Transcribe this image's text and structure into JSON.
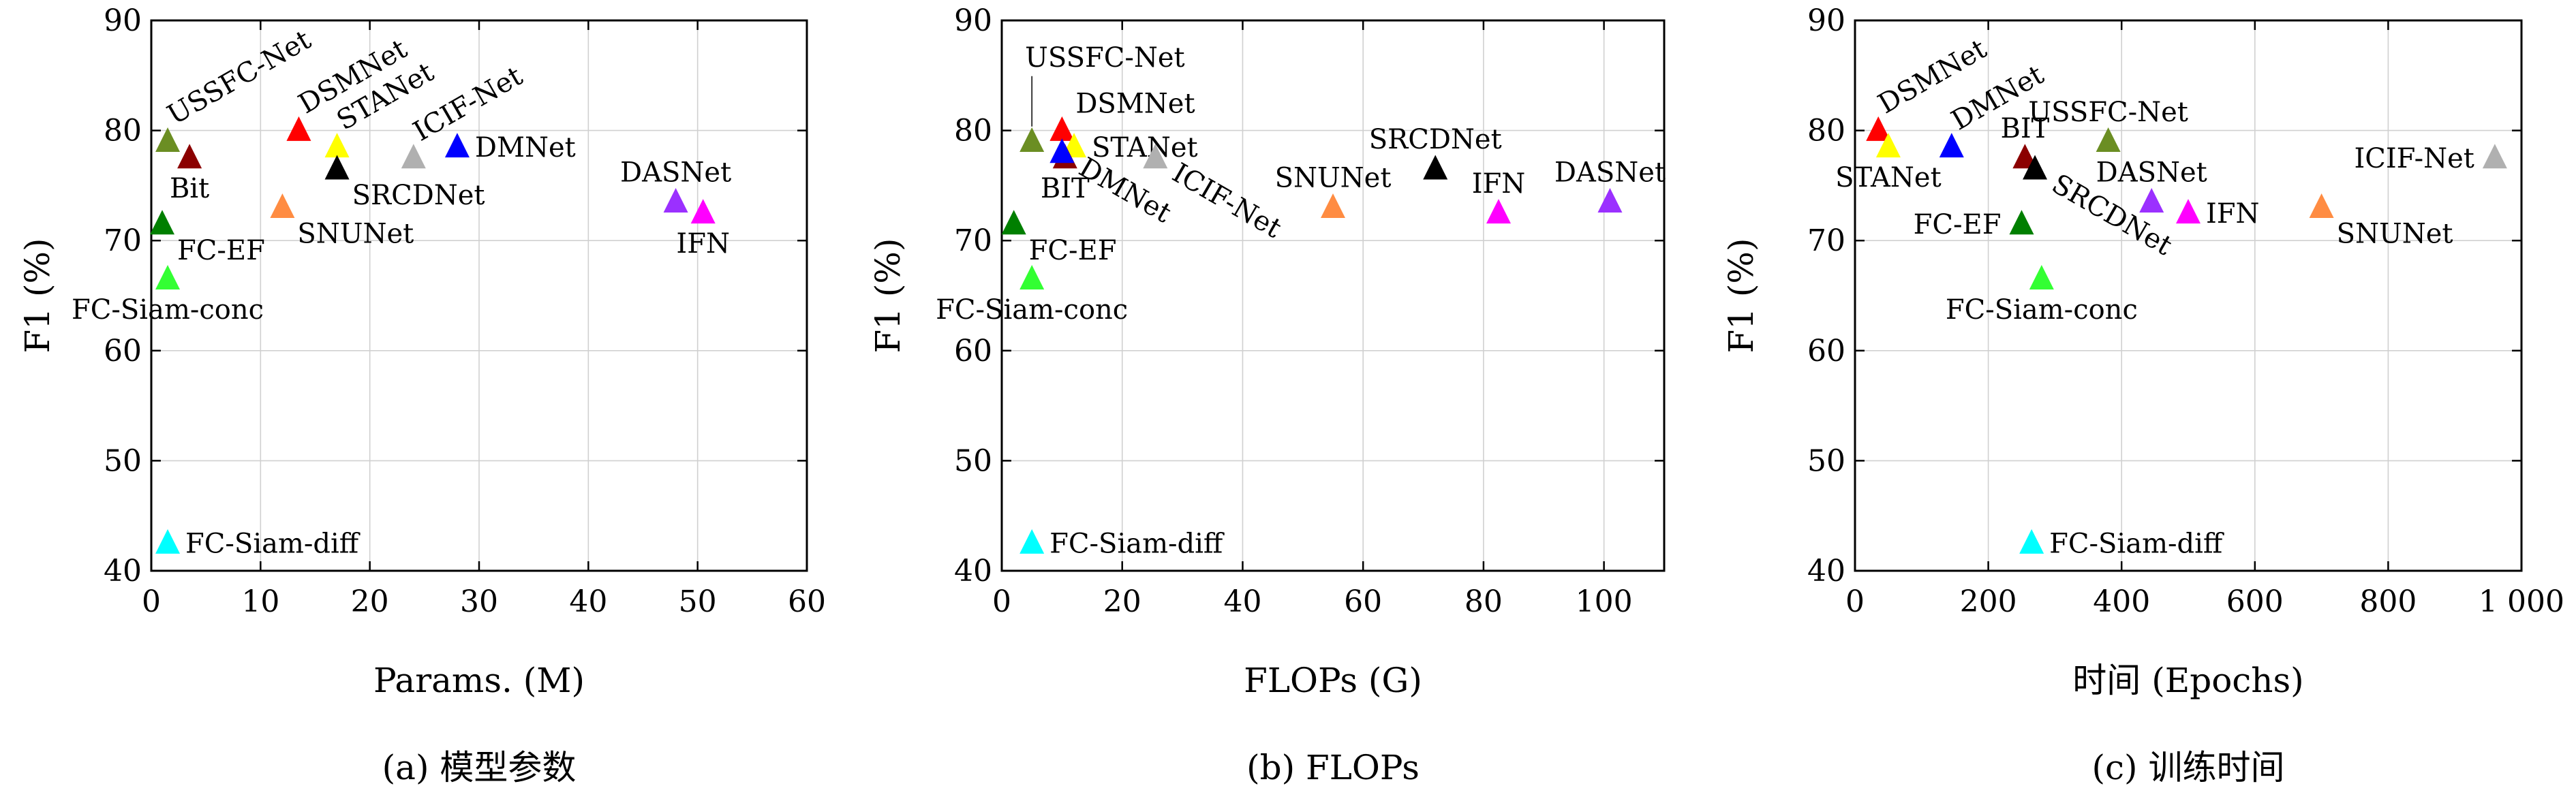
{
  "chart_data": [
    {
      "type": "scatter",
      "caption": "(a) 模型参数",
      "xlabel": "Params. (M)",
      "ylabel": "F1 (%)",
      "xlim": [
        0,
        60
      ],
      "ylim": [
        40,
        90
      ],
      "xticks": [
        0,
        10,
        20,
        30,
        40,
        50,
        60
      ],
      "yticks": [
        40,
        50,
        60,
        70,
        80,
        90
      ],
      "grid": true,
      "points": [
        {
          "name": "USSFC-Net",
          "x": 1.5,
          "y": 79.0,
          "color": "#6b8e23",
          "label_pos": "upper-right-rotated"
        },
        {
          "name": "Bit",
          "x": 3.5,
          "y": 77.5,
          "color": "#8b0000",
          "label_pos": "below"
        },
        {
          "name": "DSMNet",
          "x": 13.5,
          "y": 80.0,
          "color": "#ff0000",
          "label_pos": "upper-right-rotated"
        },
        {
          "name": "STANet",
          "x": 17.0,
          "y": 78.5,
          "color": "#ffff00",
          "label_pos": "upper-right-rotated"
        },
        {
          "name": "SRCDNet",
          "x": 17.0,
          "y": 76.5,
          "color": "#000000",
          "label_pos": "lower-right"
        },
        {
          "name": "ICIF-Net",
          "x": 24.0,
          "y": 77.5,
          "color": "#b0b0b0",
          "label_pos": "upper-right-rotated"
        },
        {
          "name": "DMNet",
          "x": 28.0,
          "y": 78.5,
          "color": "#0000ff",
          "label_pos": "right"
        },
        {
          "name": "SNUNet",
          "x": 12.0,
          "y": 73.0,
          "color": "#ff8c42",
          "label_pos": "lower-right"
        },
        {
          "name": "FC-EF",
          "x": 1.0,
          "y": 71.5,
          "color": "#007f00",
          "label_pos": "lower-right"
        },
        {
          "name": "FC-Siam-conc",
          "x": 1.5,
          "y": 66.5,
          "color": "#33ff33",
          "label_pos": "below"
        },
        {
          "name": "DASNet",
          "x": 48.0,
          "y": 73.5,
          "color": "#9b30ff",
          "label_pos": "above"
        },
        {
          "name": "IFN",
          "x": 50.5,
          "y": 72.5,
          "color": "#ff00ff",
          "label_pos": "below"
        },
        {
          "name": "FC-Siam-diff",
          "x": 1.5,
          "y": 42.5,
          "color": "#00ffff",
          "label_pos": "right"
        }
      ]
    },
    {
      "type": "scatter",
      "caption": "(b) FLOPs",
      "xlabel": "FLOPs (G)",
      "ylabel": "F1 (%)",
      "xlim": [
        0,
        110
      ],
      "ylim": [
        40,
        90
      ],
      "xticks": [
        0,
        20,
        40,
        60,
        80,
        100
      ],
      "yticks": [
        40,
        50,
        60,
        70,
        80,
        90
      ],
      "grid": true,
      "points": [
        {
          "name": "USSFC-Net",
          "x": 5.0,
          "y": 79.0,
          "color": "#6b8e23",
          "label_pos": "above-leader"
        },
        {
          "name": "DSMNet",
          "x": 10.0,
          "y": 80.0,
          "color": "#ff0000",
          "label_pos": "upper-right"
        },
        {
          "name": "STANet",
          "x": 12.0,
          "y": 78.5,
          "color": "#ffff00",
          "label_pos": "right"
        },
        {
          "name": "BIT",
          "x": 10.5,
          "y": 77.5,
          "color": "#8b0000",
          "label_pos": "below"
        },
        {
          "name": "DMNet",
          "x": 10.0,
          "y": 78.0,
          "color": "#0000ff",
          "label_pos": "lower-right-rotated"
        },
        {
          "name": "ICIF-Net",
          "x": 25.5,
          "y": 77.5,
          "color": "#b0b0b0",
          "label_pos": "lower-right-rotated"
        },
        {
          "name": "FC-EF",
          "x": 2.0,
          "y": 71.5,
          "color": "#007f00",
          "label_pos": "lower-right"
        },
        {
          "name": "FC-Siam-conc",
          "x": 5.0,
          "y": 66.5,
          "color": "#33ff33",
          "label_pos": "below"
        },
        {
          "name": "SNUNet",
          "x": 55.0,
          "y": 73.0,
          "color": "#ff8c42",
          "label_pos": "above"
        },
        {
          "name": "SRCDNet",
          "x": 72.0,
          "y": 76.5,
          "color": "#000000",
          "label_pos": "above"
        },
        {
          "name": "IFN",
          "x": 82.5,
          "y": 72.5,
          "color": "#ff00ff",
          "label_pos": "above"
        },
        {
          "name": "DASNet",
          "x": 101.0,
          "y": 73.5,
          "color": "#9b30ff",
          "label_pos": "above"
        },
        {
          "name": "FC-Siam-diff",
          "x": 5.0,
          "y": 42.5,
          "color": "#00ffff",
          "label_pos": "right"
        }
      ]
    },
    {
      "type": "scatter",
      "caption": "(c) 训练时间",
      "xlabel": "时间 (Epochs)",
      "ylabel": "F1 (%)",
      "xlim": [
        0,
        1000
      ],
      "ylim": [
        40,
        90
      ],
      "xticks": [
        0,
        200,
        400,
        600,
        800,
        1000
      ],
      "xticklabels": [
        "0",
        "200",
        "400",
        "600",
        "800",
        "1 000"
      ],
      "yticks": [
        40,
        50,
        60,
        70,
        80,
        90
      ],
      "grid": true,
      "points": [
        {
          "name": "DSMNet",
          "x": 35,
          "y": 80.0,
          "color": "#ff0000",
          "label_pos": "upper-right-rotated"
        },
        {
          "name": "STANet",
          "x": 50,
          "y": 78.5,
          "color": "#ffff00",
          "label_pos": "below"
        },
        {
          "name": "DMNet",
          "x": 145,
          "y": 78.5,
          "color": "#0000ff",
          "label_pos": "upper-right-rotated"
        },
        {
          "name": "BIT",
          "x": 255,
          "y": 77.5,
          "color": "#8b0000",
          "label_pos": "above"
        },
        {
          "name": "SRCDNet",
          "x": 270,
          "y": 76.5,
          "color": "#000000",
          "label_pos": "lower-right-rotated"
        },
        {
          "name": "USSFC-Net",
          "x": 380,
          "y": 79.0,
          "color": "#6b8e23",
          "label_pos": "above"
        },
        {
          "name": "DASNet",
          "x": 445,
          "y": 73.5,
          "color": "#9b30ff",
          "label_pos": "above"
        },
        {
          "name": "IFN",
          "x": 500,
          "y": 72.5,
          "color": "#ff00ff",
          "label_pos": "right"
        },
        {
          "name": "FC-EF",
          "x": 250,
          "y": 71.5,
          "color": "#007f00",
          "label_pos": "left"
        },
        {
          "name": "FC-Siam-conc",
          "x": 280,
          "y": 66.5,
          "color": "#33ff33",
          "label_pos": "below"
        },
        {
          "name": "SNUNet",
          "x": 700,
          "y": 73.0,
          "color": "#ff8c42",
          "label_pos": "lower-right"
        },
        {
          "name": "ICIF-Net",
          "x": 960,
          "y": 77.5,
          "color": "#b0b0b0",
          "label_pos": "left"
        },
        {
          "name": "FC-Siam-diff",
          "x": 265,
          "y": 42.5,
          "color": "#00ffff",
          "label_pos": "right"
        }
      ]
    }
  ]
}
